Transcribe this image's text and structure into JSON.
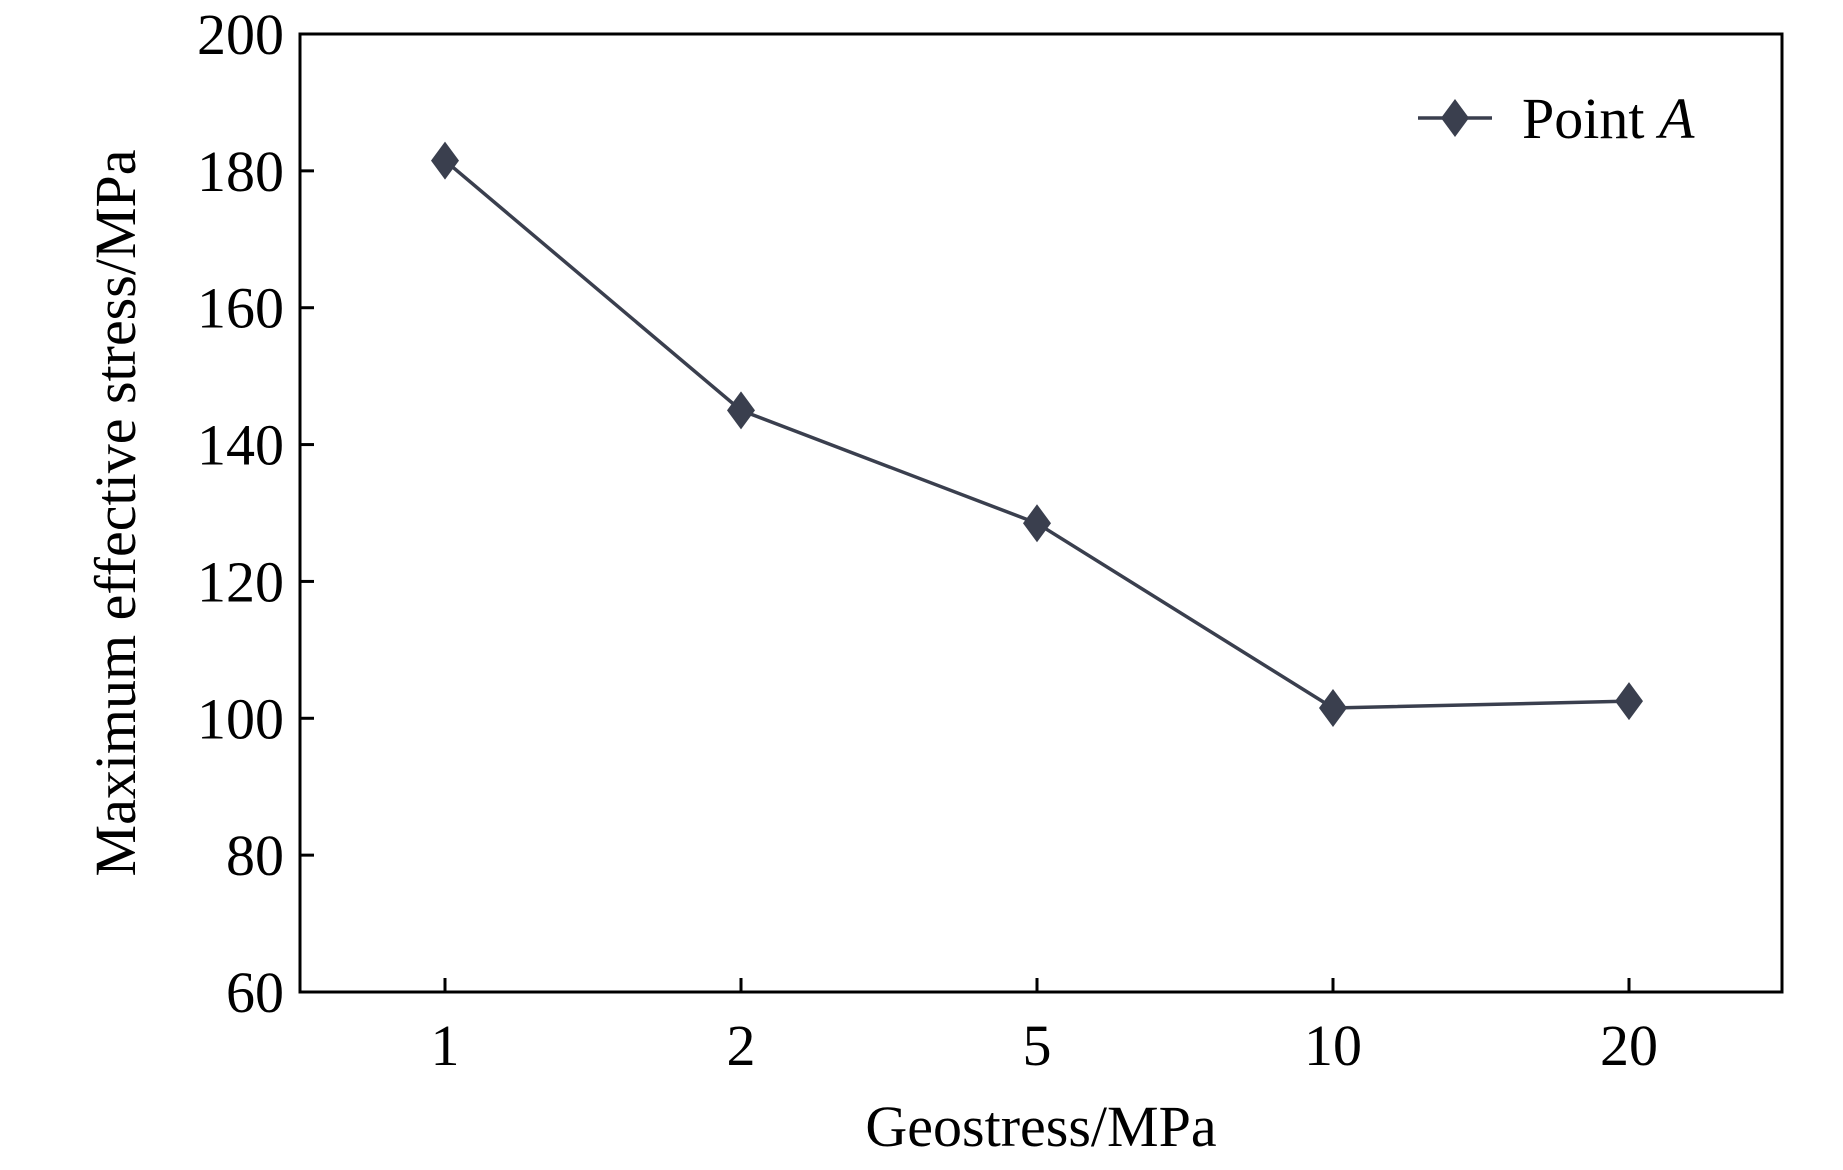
{
  "chart_data": {
    "type": "line",
    "title": "",
    "xlabel": "Geostress/MPa",
    "ylabel": "Maximum effective stress/MPa",
    "x_scale": "categorical",
    "categories": [
      "1",
      "2",
      "5",
      "10",
      "20"
    ],
    "series": [
      {
        "name": "Point A",
        "name_parts": [
          "Point ",
          "A"
        ],
        "values": [
          181.5,
          145,
          128.5,
          101.5,
          102.5
        ],
        "color": "#3a3f4e",
        "marker": "diamond"
      }
    ],
    "ylim": [
      60,
      200
    ],
    "y_ticks": [
      "60",
      "80",
      "100",
      "120",
      "140",
      "160",
      "180",
      "200"
    ],
    "grid": false,
    "legend_position": "top-right"
  }
}
